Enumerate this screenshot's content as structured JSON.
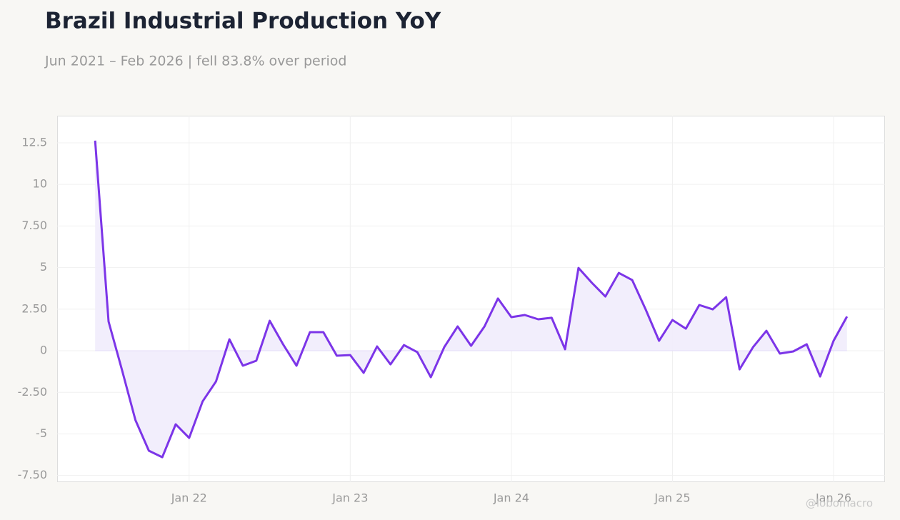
{
  "chart_data": {
    "type": "line",
    "title": "Brazil Industrial Production YoY",
    "subtitle": "Jun 2021 – Feb 2026 | fell 83.8% over period",
    "watermark": "@lobomacro",
    "x": [
      "2021-06",
      "2021-07",
      "2021-08",
      "2021-09",
      "2021-10",
      "2021-11",
      "2021-12",
      "2022-01",
      "2022-02",
      "2022-03",
      "2022-04",
      "2022-05",
      "2022-06",
      "2022-07",
      "2022-08",
      "2022-09",
      "2022-10",
      "2022-11",
      "2022-12",
      "2023-01",
      "2023-02",
      "2023-03",
      "2023-04",
      "2023-05",
      "2023-06",
      "2023-07",
      "2023-08",
      "2023-09",
      "2023-10",
      "2023-11",
      "2023-12",
      "2024-01",
      "2024-02",
      "2024-03",
      "2024-04",
      "2024-05",
      "2024-06",
      "2024-07",
      "2024-08",
      "2024-09",
      "2024-10",
      "2024-11",
      "2024-12",
      "2025-01",
      "2025-02",
      "2025-03",
      "2025-04",
      "2025-05",
      "2025-06",
      "2025-07",
      "2025-08",
      "2025-09",
      "2025-10",
      "2025-11",
      "2025-12",
      "2026-01",
      "2026-02"
    ],
    "values": [
      12.63,
      1.76,
      -1.16,
      -4.17,
      -6.01,
      -6.4,
      -4.42,
      -5.24,
      -3.05,
      -1.85,
      0.69,
      -0.9,
      -0.6,
      1.8,
      0.39,
      -0.9,
      1.12,
      1.12,
      -0.3,
      -0.26,
      -1.33,
      0.26,
      -0.82,
      0.34,
      -0.09,
      -1.59,
      0.21,
      1.46,
      0.3,
      1.46,
      3.14,
      2.02,
      2.15,
      1.89,
      1.98,
      0.09,
      4.98,
      4.08,
      3.26,
      4.68,
      4.25,
      2.49,
      0.6,
      1.85,
      1.33,
      2.75,
      2.49,
      3.22,
      -1.12,
      0.21,
      1.2,
      -0.17,
      -0.04,
      0.39,
      -1.55,
      0.6,
      2.06
    ],
    "color": "#7c35e8",
    "fill_color": "#f1ecfc",
    "ylim": [
      -7.9,
      14.13
    ],
    "yticks": [
      {
        "value": -7.5,
        "label": "-7.50"
      },
      -5,
      {
        "value": -2.5,
        "label": "-2.50"
      },
      0,
      {
        "value": 2.5,
        "label": "2.50"
      },
      5,
      {
        "value": 7.5,
        "label": "7.50"
      },
      10,
      12.5
    ],
    "xticks": [
      {
        "value": "2022-01",
        "label": "Jan 22"
      },
      {
        "value": "2023-01",
        "label": "Jan 23"
      },
      {
        "value": "2024-01",
        "label": "Jan 24"
      },
      {
        "value": "2025-01",
        "label": "Jan 25"
      },
      {
        "value": "2026-01",
        "label": "Jan 26"
      }
    ],
    "grid": true
  }
}
